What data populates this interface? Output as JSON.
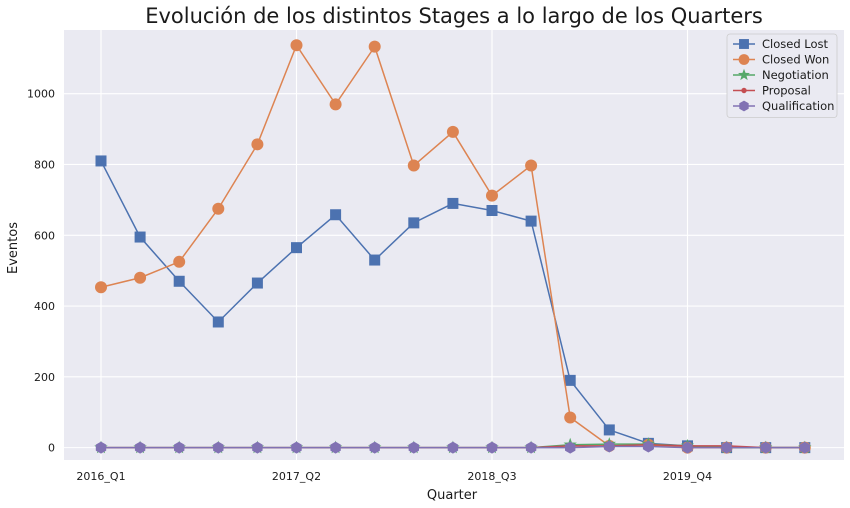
{
  "chart_data": {
    "type": "line",
    "title": "Evolución de los distintos Stages a lo largo de los Quarters",
    "xlabel": "Quarter",
    "ylabel": "Eventos",
    "x": [
      "2016_Q1",
      "2016_Q2",
      "2016_Q3",
      "2016_Q4",
      "2017_Q1",
      "2017_Q2",
      "2017_Q3",
      "2017_Q4",
      "2018_Q1",
      "2018_Q2",
      "2018_Q3",
      "2018_Q4",
      "2019_Q1",
      "2019_Q2",
      "2019_Q3",
      "2019_Q4",
      "2020_Q1",
      "2020_Q2",
      "2020_Q3"
    ],
    "xticks": [
      "2016_Q1",
      "2017_Q2",
      "2018_Q3",
      "2019_Q4"
    ],
    "ylim": [
      -35,
      1180
    ],
    "yticks": [
      0,
      200,
      400,
      600,
      800,
      1000
    ],
    "grid": true,
    "legend_position": "top-right",
    "series": [
      {
        "name": "Closed Lost",
        "color": "#4c72b0",
        "marker": "square",
        "values": [
          810,
          595,
          470,
          355,
          465,
          565,
          658,
          530,
          635,
          690,
          670,
          640,
          190,
          50,
          12,
          5,
          0,
          0,
          0
        ]
      },
      {
        "name": "Closed Won",
        "color": "#dd8452",
        "marker": "circle",
        "values": [
          453,
          480,
          525,
          675,
          857,
          1137,
          970,
          1133,
          797,
          892,
          712,
          797,
          85,
          5,
          8,
          0,
          0,
          0,
          0
        ]
      },
      {
        "name": "Negotiation",
        "color": "#55a868",
        "marker": "star",
        "values": [
          0,
          0,
          0,
          0,
          0,
          0,
          0,
          0,
          0,
          0,
          0,
          0,
          8,
          10,
          10,
          5,
          0,
          0,
          0
        ]
      },
      {
        "name": "Proposal",
        "color": "#c44e52",
        "marker": "dot",
        "values": [
          0,
          0,
          0,
          0,
          0,
          0,
          0,
          0,
          0,
          0,
          0,
          0,
          5,
          5,
          8,
          5,
          5,
          0,
          0
        ]
      },
      {
        "name": "Qualification",
        "color": "#8172b3",
        "marker": "hexagon",
        "values": [
          0,
          0,
          0,
          0,
          0,
          0,
          0,
          0,
          0,
          0,
          0,
          0,
          0,
          3,
          3,
          0,
          0,
          0,
          0
        ]
      }
    ]
  }
}
